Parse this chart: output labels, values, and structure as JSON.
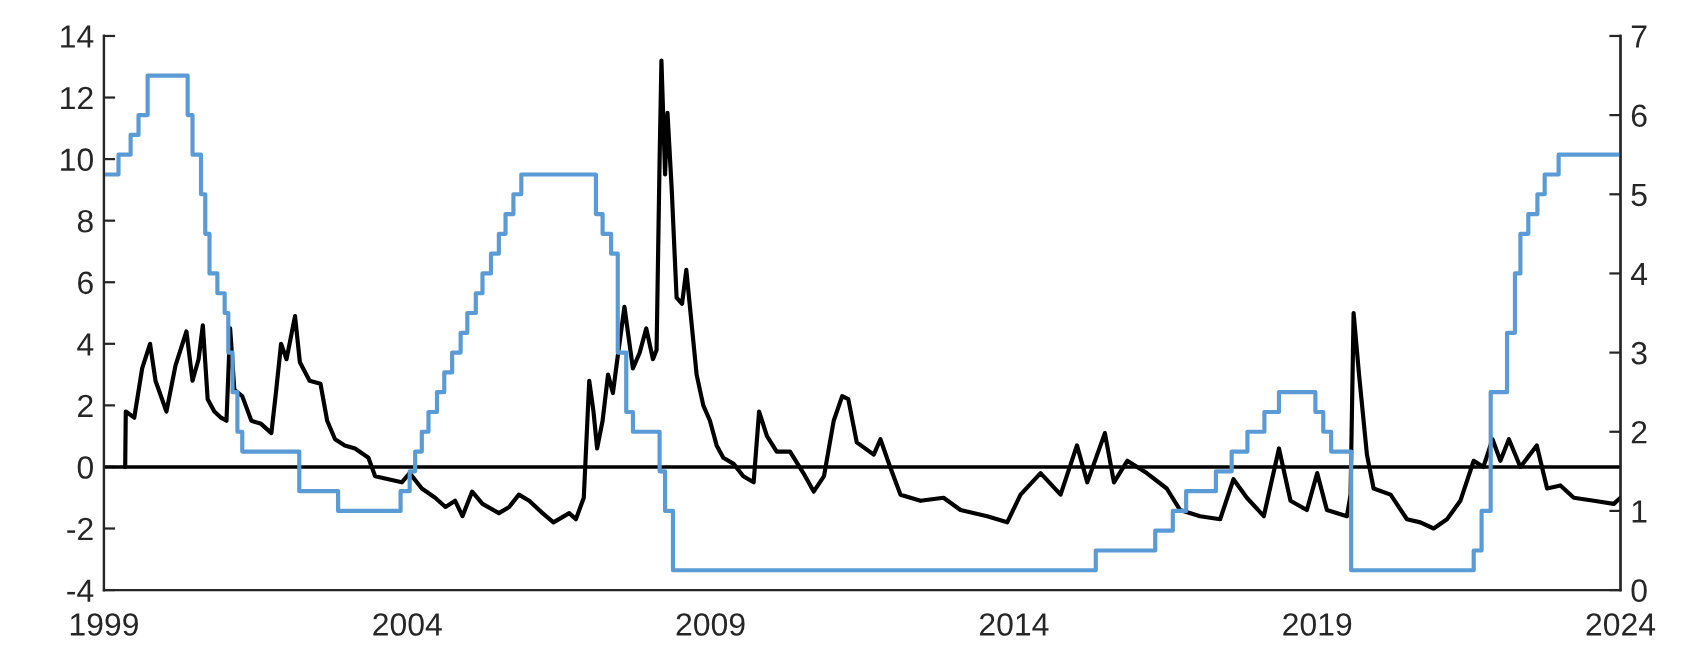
{
  "chart_data": {
    "type": "line",
    "xlim": [
      1999,
      2024
    ],
    "xticks": [
      1999,
      2004,
      2009,
      2014,
      2019,
      2024
    ],
    "ylim": [
      -4,
      14
    ],
    "yticks": [
      -4,
      -2,
      0,
      2,
      4,
      6,
      8,
      10,
      12,
      14
    ],
    "y2lim": [
      0,
      7
    ],
    "y2ticks": [
      0,
      1,
      2,
      3,
      4,
      5,
      6,
      7
    ],
    "grid": false,
    "legend": false,
    "marker": "none",
    "line_style": "solid",
    "ref_lines": [
      {
        "axis": "y",
        "value": 0,
        "color": "#000000",
        "line_style": "solid"
      }
    ],
    "series": [
      {
        "color": "#000000",
        "x": [
          1999.35,
          1999.36,
          1999.5,
          1999.63,
          1999.76,
          1999.85,
          2000.03,
          2000.18,
          2000.36,
          2000.46,
          2000.56,
          2000.63,
          2000.71,
          2000.82,
          2000.93,
          2001.02,
          2001.08,
          2001.15,
          2001.28,
          2001.43,
          2001.59,
          2001.76,
          2001.84,
          2001.92,
          2002.01,
          2002.15,
          2002.23,
          2002.39,
          2002.57,
          2002.68,
          2002.81,
          2002.97,
          2003.14,
          2003.36,
          2003.47,
          2003.69,
          2003.91,
          2004.04,
          2004.24,
          2004.46,
          2004.63,
          2004.79,
          2004.91,
          2005.07,
          2005.24,
          2005.51,
          2005.68,
          2005.84,
          2006.01,
          2006.23,
          2006.41,
          2006.67,
          2006.78,
          2006.91,
          2007.0,
          2007.07,
          2007.13,
          2007.22,
          2007.31,
          2007.39,
          2007.47,
          2007.58,
          2007.72,
          2007.83,
          2007.94,
          2008.05,
          2008.11,
          2008.16,
          2008.19,
          2008.25,
          2008.29,
          2008.36,
          2008.44,
          2008.53,
          2008.6,
          2008.77,
          2008.88,
          2008.99,
          2009.1,
          2009.21,
          2009.38,
          2009.54,
          2009.71,
          2009.8,
          2009.93,
          2010.09,
          2010.31,
          2010.53,
          2010.7,
          2010.87,
          2011.03,
          2011.17,
          2011.27,
          2011.41,
          2011.69,
          2011.8,
          2011.96,
          2012.13,
          2012.46,
          2012.84,
          2013.12,
          2013.56,
          2013.89,
          2014.11,
          2014.44,
          2014.77,
          2015.04,
          2015.21,
          2015.5,
          2015.65,
          2015.87,
          2016.19,
          2016.52,
          2016.74,
          2017.07,
          2017.4,
          2017.62,
          2017.84,
          2018.12,
          2018.37,
          2018.56,
          2018.83,
          2019.0,
          2019.16,
          2019.49,
          2019.55,
          2019.6,
          2019.69,
          2019.82,
          2019.93,
          2020.21,
          2020.48,
          2020.7,
          2020.92,
          2021.14,
          2021.36,
          2021.58,
          2021.74,
          2021.89,
          2022.02,
          2022.16,
          2022.35,
          2022.62,
          2022.79,
          2023.01,
          2023.23,
          2023.56,
          2023.89,
          2024.0
        ],
        "values": [
          0,
          1.8,
          1.6,
          3.2,
          4.0,
          2.8,
          1.8,
          3.3,
          4.4,
          2.8,
          3.5,
          4.6,
          2.2,
          1.8,
          1.6,
          1.5,
          4.5,
          2.5,
          2.3,
          1.5,
          1.4,
          1.1,
          2.5,
          4.0,
          3.5,
          4.9,
          3.4,
          2.8,
          2.7,
          1.5,
          0.9,
          0.7,
          0.6,
          0.3,
          -0.3,
          -0.4,
          -0.5,
          -0.2,
          -0.7,
          -1.0,
          -1.3,
          -1.1,
          -1.6,
          -0.8,
          -1.2,
          -1.5,
          -1.3,
          -0.9,
          -1.1,
          -1.5,
          -1.8,
          -1.5,
          -1.7,
          -1.0,
          2.8,
          1.8,
          0.6,
          1.5,
          3.0,
          2.4,
          3.6,
          5.2,
          3.2,
          3.7,
          4.5,
          3.5,
          3.8,
          10,
          13.2,
          9.5,
          11.5,
          9.0,
          5.5,
          5.3,
          6.4,
          3.0,
          2.0,
          1.5,
          0.7,
          0.3,
          0.1,
          -0.3,
          -0.5,
          1.8,
          1.0,
          0.5,
          0.5,
          -0.2,
          -0.8,
          -0.3,
          1.5,
          2.3,
          2.2,
          0.8,
          0.4,
          0.9,
          0,
          -0.9,
          -1.1,
          -1.0,
          -1.4,
          -1.6,
          -1.8,
          -0.9,
          -0.2,
          -0.9,
          0.7,
          -0.5,
          1.1,
          -0.5,
          0.2,
          -0.2,
          -0.7,
          -1.4,
          -1.6,
          -1.7,
          -0.4,
          -1.0,
          -1.6,
          0.6,
          -1.1,
          -1.4,
          -0.2,
          -1.4,
          -1.6,
          -0.9,
          5.0,
          3.0,
          0.4,
          -0.7,
          -0.9,
          -1.7,
          -1.8,
          -2.0,
          -1.7,
          -1.1,
          0.2,
          0,
          0.9,
          0.2,
          0.9,
          0,
          0.7,
          -0.7,
          -0.6,
          -1.0,
          -1.1,
          -1.2,
          -1.0
        ]
      },
      {
        "type": "step",
        "axis": "y2",
        "color": "#5b9bd5",
        "x": [
          1999.0,
          1999.24,
          1999.44,
          1999.57,
          1999.72,
          2000.38,
          2000.46,
          2000.6,
          2000.67,
          2000.74,
          2000.87,
          2000.99,
          2001.05,
          2001.12,
          2001.2,
          2001.28,
          2002.22,
          2002.86,
          2003.89,
          2004.04,
          2004.13,
          2004.24,
          2004.35,
          2004.49,
          2004.61,
          2004.74,
          2004.88,
          2004.99,
          2005.13,
          2005.24,
          2005.38,
          2005.51,
          2005.62,
          2005.75,
          2005.88,
          2007.11,
          2007.22,
          2007.36,
          2007.47,
          2007.61,
          2007.72,
          2008.16,
          2008.25,
          2008.38,
          2015.35,
          2016.33,
          2016.62,
          2016.84,
          2017.33,
          2017.59,
          2017.85,
          2018.13,
          2018.37,
          2018.97,
          2019.1,
          2019.23,
          2019.56,
          2021.58,
          2021.71,
          2021.86,
          2022.13,
          2022.26,
          2022.35,
          2022.48,
          2022.63,
          2022.75,
          2022.98,
          2024.0
        ],
        "values": [
          5.25,
          5.5,
          5.75,
          6.0,
          6.5,
          6.0,
          5.5,
          5.0,
          4.5,
          4.0,
          3.75,
          3.5,
          3.0,
          2.5,
          2.0,
          1.75,
          1.25,
          1.0,
          1.25,
          1.5,
          1.75,
          2.0,
          2.25,
          2.5,
          2.75,
          3.0,
          3.25,
          3.5,
          3.75,
          4.0,
          4.25,
          4.5,
          4.75,
          5.0,
          5.25,
          4.75,
          4.5,
          4.25,
          3.0,
          2.25,
          2.0,
          1.5,
          1.0,
          0.25,
          0.5,
          0.75,
          1.0,
          1.25,
          1.5,
          1.75,
          2.0,
          2.25,
          2.5,
          2.25,
          2.0,
          1.75,
          0.25,
          0.5,
          1.0,
          2.5,
          3.25,
          4.0,
          4.5,
          4.75,
          5.0,
          5.25,
          5.5,
          5.5
        ]
      }
    ]
  }
}
